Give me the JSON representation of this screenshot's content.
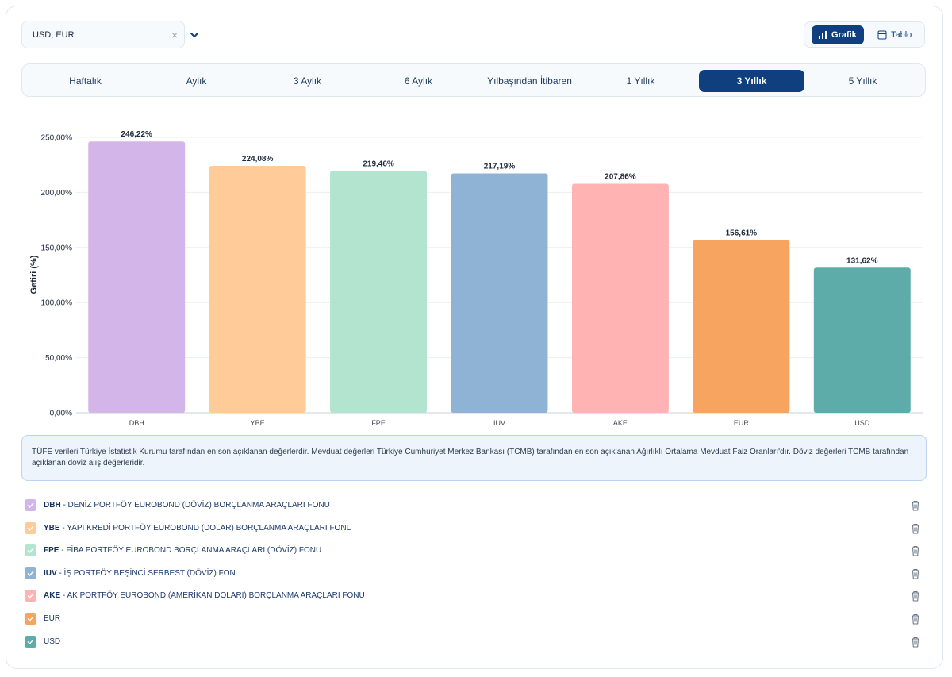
{
  "filter": {
    "value": "USD, EUR"
  },
  "view_toggle": {
    "grafik_label": "Grafik",
    "tablo_label": "Tablo"
  },
  "period_tabs": [
    {
      "label": "Haftalık",
      "active": false
    },
    {
      "label": "Aylık",
      "active": false
    },
    {
      "label": "3 Aylık",
      "active": false
    },
    {
      "label": "6 Aylık",
      "active": false
    },
    {
      "label": "Yılbaşından İtibaren",
      "active": false
    },
    {
      "label": "1 Yıllık",
      "active": false
    },
    {
      "label": "3 Yıllık",
      "active": true
    },
    {
      "label": "5 Yıllık",
      "active": false
    }
  ],
  "chart_data": {
    "type": "bar",
    "categories": [
      "DBH",
      "YBE",
      "FPE",
      "IUV",
      "AKE",
      "EUR",
      "USD"
    ],
    "values": [
      246.22,
      224.08,
      219.46,
      217.19,
      207.86,
      156.61,
      131.62
    ],
    "value_labels": [
      "246,22%",
      "224,08%",
      "219,46%",
      "217,19%",
      "207,86%",
      "156,61%",
      "131,62%"
    ],
    "colors": [
      "#d4b5e9",
      "#ffcb99",
      "#b3e4d0",
      "#8fb3d5",
      "#ffb3b3",
      "#f6a45f",
      "#5eacaa"
    ],
    "ylabel": "Getiri (%)",
    "ylim": [
      0,
      250
    ],
    "yticks": [
      0,
      50,
      100,
      150,
      200,
      250
    ],
    "ytick_labels": [
      "0,00%",
      "50,00%",
      "100,00%",
      "150,00%",
      "200,00%",
      "250,00%"
    ],
    "grid": true
  },
  "note": "TÜFE verileri Türkiye İstatistik Kurumu tarafından en son açıklanan değerlerdir. Mevduat değerleri Türkiye Cumhuriyet Merkez Bankası (TCMB) tarafından en son açıklanan Ağırlıklı Ortalama Mevduat Faiz Oranları'dır. Döviz değerleri TCMB tarafından açıklanan döviz alış değerleridir.",
  "legend": [
    {
      "code": "DBH",
      "name": " - DENİZ PORTFÖY EUROBOND (DÖVİZ) BORÇLANMA ARAÇLARI FONU",
      "color": "#d4b5e9"
    },
    {
      "code": "YBE",
      "name": " - YAPI KREDİ PORTFÖY EUROBOND (DOLAR) BORÇLANMA ARAÇLARI FONU",
      "color": "#ffcb99"
    },
    {
      "code": "FPE",
      "name": " - FİBA PORTFÖY EUROBOND BORÇLANMA ARAÇLARI (DÖVİZ) FONU",
      "color": "#b3e4d0"
    },
    {
      "code": "IUV",
      "name": " - İŞ PORTFÖY BEŞİNCİ SERBEST (DÖVİZ) FON",
      "color": "#8fb3d5"
    },
    {
      "code": "AKE",
      "name": " - AK PORTFÖY EUROBOND (AMERİKAN DOLARI) BORÇLANMA ARAÇLARI FONU",
      "color": "#ffb3b3"
    },
    {
      "code": "EUR",
      "name": "",
      "color": "#f6a45f"
    },
    {
      "code": "USD",
      "name": "",
      "color": "#5eacaa"
    }
  ]
}
